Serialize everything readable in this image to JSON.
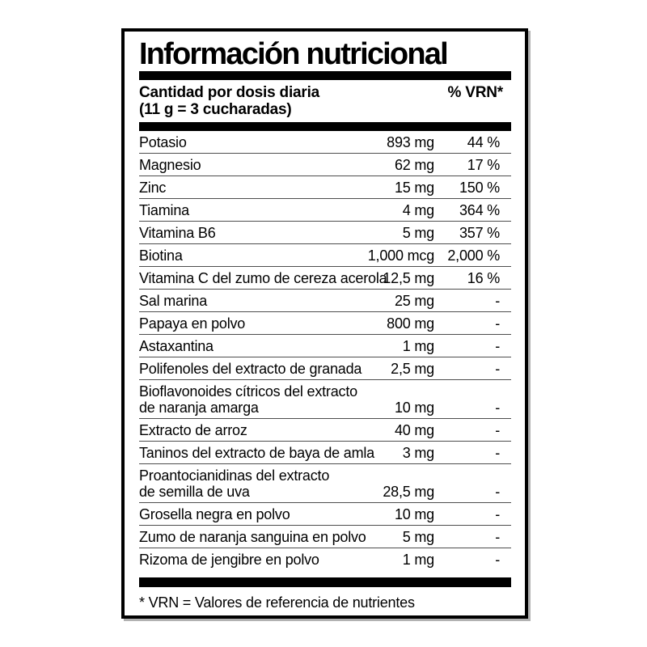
{
  "label": {
    "title": "Información nutricional",
    "header": {
      "serving_line1": "Cantidad por dosis diaria",
      "serving_line2": "(11 g = 3 cucharadas)",
      "vrn_column_header": "% VRN*"
    },
    "rows": [
      {
        "name": "Potasio",
        "amount": "893 mg",
        "vrn": "44 %"
      },
      {
        "name": "Magnesio",
        "amount": "62 mg",
        "vrn": "17 %"
      },
      {
        "name": "Zinc",
        "amount": "15 mg",
        "vrn": "150 %"
      },
      {
        "name": "Tiamina",
        "amount": "4 mg",
        "vrn": "364 %"
      },
      {
        "name": "Vitamina B6",
        "amount": "5 mg",
        "vrn": "357 %"
      },
      {
        "name": "Biotina",
        "amount": "1,000 mcg",
        "vrn": "2,000 %"
      },
      {
        "name": "Vitamina C del zumo de cereza acerola",
        "amount": "12,5 mg",
        "vrn": "16 %"
      },
      {
        "name": "Sal marina",
        "amount": "25 mg",
        "vrn": "-"
      },
      {
        "name": "Papaya en polvo",
        "amount": "800 mg",
        "vrn": "-"
      },
      {
        "name": "Astaxantina",
        "amount": "1 mg",
        "vrn": "-"
      },
      {
        "name": "Polifenoles del extracto de granada",
        "amount": "2,5 mg",
        "vrn": "-"
      },
      {
        "name": "Bioflavonoides cítricos del extracto",
        "name_line2": "de naranja amarga",
        "amount": "10 mg",
        "vrn": "-"
      },
      {
        "name": "Extracto de arroz",
        "amount": "40 mg",
        "vrn": "-"
      },
      {
        "name": "Taninos del extracto de baya de amla",
        "amount": "3 mg",
        "vrn": "-"
      },
      {
        "name": "Proantocianidinas del extracto",
        "name_line2": "de semilla de uva",
        "amount": "28,5 mg",
        "vrn": "-"
      },
      {
        "name": "Grosella negra en polvo",
        "amount": "10 mg",
        "vrn": "-"
      },
      {
        "name": "Zumo de naranja sanguina en polvo",
        "amount": "5 mg",
        "vrn": "-"
      },
      {
        "name": "Rizoma de jengibre en polvo",
        "amount": "1 mg",
        "vrn": "-"
      }
    ],
    "footnote": "* VRN = Valores de referencia de nutrientes"
  },
  "colors": {
    "background": "#ffffff",
    "text": "#000000",
    "border": "#000000",
    "separator": "#4d4d4d"
  }
}
